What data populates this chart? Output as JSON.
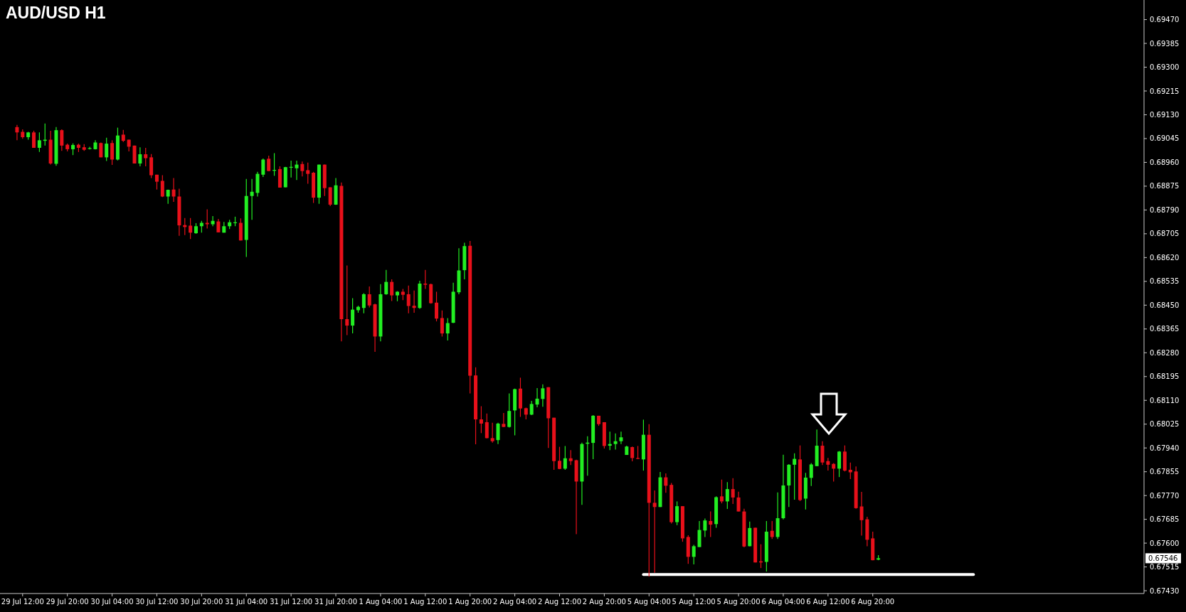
{
  "chart_data": {
    "type": "candlestick",
    "title": "AUD/USD H1",
    "categories": [
      null,
      "29 Jul 12:00",
      null,
      null,
      null,
      null,
      null,
      null,
      null,
      "29 Jul 20:00",
      null,
      null,
      null,
      null,
      null,
      null,
      null,
      "30 Jul 04:00",
      null,
      null,
      null,
      null,
      null,
      null,
      null,
      "30 Jul 12:00",
      null,
      null,
      null,
      null,
      null,
      null,
      null,
      "30 Jul 20:00",
      null,
      null,
      null,
      null,
      null,
      null,
      null,
      "31 Jul 04:00",
      null,
      null,
      null,
      null,
      null,
      null,
      null,
      "31 Jul 12:00",
      null,
      null,
      null,
      null,
      null,
      null,
      null,
      "31 Jul 20:00",
      null,
      null,
      null,
      null,
      null,
      null,
      null,
      "1 Aug 04:00",
      null,
      null,
      null,
      null,
      null,
      null,
      null,
      "1 Aug 12:00",
      null,
      null,
      null,
      null,
      null,
      null,
      null,
      "1 Aug 20:00",
      null,
      null,
      null,
      null,
      null,
      null,
      null,
      "2 Aug 04:00",
      null,
      null,
      null,
      null,
      null,
      null,
      null,
      "2 Aug 12:00",
      null,
      null,
      null,
      null,
      null,
      null,
      null,
      "2 Aug 20:00",
      null,
      null,
      null,
      null,
      null,
      null,
      null,
      "5 Aug 04:00",
      null,
      null,
      null,
      null,
      null,
      null,
      null,
      "5 Aug 12:00",
      null,
      null,
      null,
      null,
      null,
      null,
      null,
      "5 Aug 20:00",
      null,
      null,
      null,
      null,
      null,
      null,
      null,
      "6 Aug 04:00",
      null,
      null,
      null,
      null,
      null,
      null,
      null,
      "6 Aug 12:00",
      null,
      null,
      null,
      null,
      null,
      null,
      null,
      "6 Aug 20:00",
      null,
      null,
      null,
      null,
      null,
      null,
      null,
      null,
      null,
      null,
      null,
      null,
      null,
      null,
      null,
      null,
      null,
      null,
      null,
      null,
      null,
      null,
      null,
      null,
      null,
      null,
      null,
      null,
      null,
      null,
      null,
      null,
      null,
      null,
      null,
      null,
      null,
      null,
      null,
      null,
      null,
      null,
      null,
      null,
      null,
      null,
      null,
      null
    ],
    "ohlc": [
      [
        0.69086,
        0.69094,
        0.69039,
        0.69067
      ],
      [
        0.69069,
        0.69078,
        0.69044,
        0.6905
      ],
      [
        0.6905,
        0.69069,
        0.69041,
        0.69067
      ],
      [
        0.69067,
        0.69073,
        0.69012,
        0.69012
      ],
      [
        0.69012,
        0.69067,
        0.68997,
        0.69039
      ],
      [
        0.69037,
        0.69099,
        0.6902,
        0.69041
      ],
      [
        0.69041,
        0.69073,
        0.68952,
        0.68956
      ],
      [
        0.68955,
        0.69086,
        0.68948,
        0.69075
      ],
      [
        0.69075,
        0.69078,
        0.69001,
        0.6902
      ],
      [
        0.69023,
        0.69027,
        0.68999,
        0.69007
      ],
      [
        0.69007,
        0.69028,
        0.68986,
        0.69022
      ],
      [
        0.69023,
        0.69027,
        0.68997,
        0.69012
      ],
      [
        0.69014,
        0.69025,
        0.69001,
        0.69005
      ],
      [
        0.69009,
        0.69016,
        0.69006,
        0.69011
      ],
      [
        0.69007,
        0.69039,
        0.69006,
        0.69031
      ],
      [
        0.69029,
        0.69031,
        0.68978,
        0.68978
      ],
      [
        0.68978,
        0.69048,
        0.68965,
        0.69027
      ],
      [
        0.69029,
        0.69039,
        0.68951,
        0.6897
      ],
      [
        0.6897,
        0.69084,
        0.68967,
        0.69056
      ],
      [
        0.69059,
        0.69076,
        0.69033,
        0.69037
      ],
      [
        0.69041,
        0.69041,
        0.68999,
        0.69016
      ],
      [
        0.6902,
        0.6902,
        0.68956,
        0.68956
      ],
      [
        0.68956,
        0.69014,
        0.68946,
        0.68989
      ],
      [
        0.68989,
        0.69012,
        0.68946,
        0.68975
      ],
      [
        0.68978,
        0.6899,
        0.68904,
        0.68914
      ],
      [
        0.68916,
        0.68916,
        0.68863,
        0.68891
      ],
      [
        0.68894,
        0.68914,
        0.68836,
        0.68838
      ],
      [
        0.68838,
        0.68863,
        0.68812,
        0.68862
      ],
      [
        0.68863,
        0.68904,
        0.68819,
        0.68838
      ],
      [
        0.68838,
        0.68866,
        0.68698,
        0.68735
      ],
      [
        0.68736,
        0.68761,
        0.687,
        0.68729
      ],
      [
        0.68734,
        0.68761,
        0.68686,
        0.68709
      ],
      [
        0.68707,
        0.68743,
        0.68705,
        0.68732
      ],
      [
        0.68732,
        0.68751,
        0.68709,
        0.68744
      ],
      [
        0.68744,
        0.68792,
        0.68724,
        0.68739
      ],
      [
        0.68739,
        0.68768,
        0.68732,
        0.68751
      ],
      [
        0.68749,
        0.68758,
        0.6871,
        0.6871
      ],
      [
        0.68709,
        0.68747,
        0.68709,
        0.68732
      ],
      [
        0.68732,
        0.68755,
        0.68722,
        0.68746
      ],
      [
        0.68744,
        0.68766,
        0.68732,
        0.68746
      ],
      [
        0.68744,
        0.6876,
        0.68681,
        0.68681
      ],
      [
        0.68683,
        0.68901,
        0.68622,
        0.6884
      ],
      [
        0.6884,
        0.68901,
        0.68755,
        0.68855
      ],
      [
        0.68851,
        0.68926,
        0.68838,
        0.68919
      ],
      [
        0.68916,
        0.68974,
        0.68908,
        0.6897
      ],
      [
        0.68973,
        0.68984,
        0.68929,
        0.68929
      ],
      [
        0.68931,
        0.68993,
        0.68912,
        0.68933
      ],
      [
        0.68936,
        0.68946,
        0.6887,
        0.6887
      ],
      [
        0.68871,
        0.68944,
        0.68871,
        0.68943
      ],
      [
        0.68941,
        0.68966,
        0.68906,
        0.68944
      ],
      [
        0.68939,
        0.68966,
        0.68897,
        0.68952
      ],
      [
        0.68954,
        0.68963,
        0.6891,
        0.68929
      ],
      [
        0.68932,
        0.68959,
        0.68884,
        0.68919
      ],
      [
        0.68923,
        0.68926,
        0.68815,
        0.68834
      ],
      [
        0.68834,
        0.68952,
        0.68812,
        0.68952
      ],
      [
        0.68952,
        0.68952,
        0.6884,
        0.68868
      ],
      [
        0.68871,
        0.68871,
        0.68804,
        0.68809
      ],
      [
        0.68809,
        0.68904,
        0.68808,
        0.68878
      ],
      [
        0.68876,
        0.68888,
        0.68321,
        0.684
      ],
      [
        0.684,
        0.68592,
        0.68343,
        0.68377
      ],
      [
        0.68377,
        0.68475,
        0.68349,
        0.68434
      ],
      [
        0.68432,
        0.68448,
        0.68423,
        0.68444
      ],
      [
        0.6844,
        0.68493,
        0.68421,
        0.68489
      ],
      [
        0.68489,
        0.68517,
        0.68442,
        0.68449
      ],
      [
        0.68453,
        0.68455,
        0.68283,
        0.68338
      ],
      [
        0.68338,
        0.68525,
        0.68321,
        0.68489
      ],
      [
        0.68489,
        0.68576,
        0.68487,
        0.68533
      ],
      [
        0.68533,
        0.68542,
        0.68465,
        0.68485
      ],
      [
        0.68485,
        0.685,
        0.68464,
        0.68498
      ],
      [
        0.68498,
        0.68508,
        0.68468,
        0.68487
      ],
      [
        0.68489,
        0.6852,
        0.68421,
        0.68447
      ],
      [
        0.68448,
        0.68502,
        0.68423,
        0.6844
      ],
      [
        0.6844,
        0.68537,
        0.68437,
        0.68527
      ],
      [
        0.68527,
        0.68576,
        0.68508,
        0.68523
      ],
      [
        0.68525,
        0.68527,
        0.68455,
        0.68457
      ],
      [
        0.68459,
        0.68498,
        0.68392,
        0.68402
      ],
      [
        0.68404,
        0.68431,
        0.68338,
        0.68349
      ],
      [
        0.68349,
        0.68404,
        0.68324,
        0.68386
      ],
      [
        0.68387,
        0.6853,
        0.68386,
        0.68498
      ],
      [
        0.68496,
        0.68653,
        0.68489,
        0.68574
      ],
      [
        0.68575,
        0.68673,
        0.68542,
        0.68661
      ],
      [
        0.68662,
        0.68679,
        0.68135,
        0.68198
      ],
      [
        0.68199,
        0.68228,
        0.67953,
        0.68042
      ],
      [
        0.68042,
        0.68089,
        0.67993,
        0.68027
      ],
      [
        0.68032,
        0.68063,
        0.67974,
        0.67975
      ],
      [
        0.67975,
        0.6803,
        0.67959,
        0.67964
      ],
      [
        0.67968,
        0.6803,
        0.67954,
        0.68027
      ],
      [
        0.68026,
        0.68065,
        0.68015,
        0.68015
      ],
      [
        0.68015,
        0.68135,
        0.68013,
        0.68072
      ],
      [
        0.68074,
        0.68152,
        0.67985,
        0.6815
      ],
      [
        0.68152,
        0.68191,
        0.68051,
        0.68081
      ],
      [
        0.68082,
        0.68084,
        0.68042,
        0.68059
      ],
      [
        0.68059,
        0.68108,
        0.68057,
        0.68097
      ],
      [
        0.68095,
        0.68154,
        0.68085,
        0.68116
      ],
      [
        0.68115,
        0.68167,
        0.68087,
        0.68153
      ],
      [
        0.68157,
        0.68157,
        0.6794,
        0.68046
      ],
      [
        0.68048,
        0.68048,
        0.67862,
        0.67893
      ],
      [
        0.67894,
        0.67944,
        0.67864,
        0.67865
      ],
      [
        0.67866,
        0.67947,
        0.67862,
        0.67903
      ],
      [
        0.67903,
        0.67932,
        0.67879,
        0.67893
      ],
      [
        0.67896,
        0.67898,
        0.67632,
        0.6782
      ],
      [
        0.6782,
        0.67959,
        0.67737,
        0.67954
      ],
      [
        0.67955,
        0.67982,
        0.67841,
        0.67959
      ],
      [
        0.67958,
        0.68057,
        0.679,
        0.68055
      ],
      [
        0.68055,
        0.68055,
        0.68019,
        0.68025
      ],
      [
        0.68032,
        0.68032,
        0.67938,
        0.67947
      ],
      [
        0.67948,
        0.67998,
        0.67932,
        0.67954
      ],
      [
        0.67954,
        0.67992,
        0.67934,
        0.67964
      ],
      [
        0.67964,
        0.67998,
        0.67954,
        0.67978
      ],
      [
        0.67915,
        0.67948,
        0.67915,
        0.67945
      ],
      [
        0.67943,
        0.67945,
        0.67892,
        0.67904
      ],
      [
        0.67904,
        0.67947,
        0.679,
        0.67902
      ],
      [
        0.67899,
        0.68041,
        0.67859,
        0.67987
      ],
      [
        0.67987,
        0.68025,
        0.6748,
        0.67744
      ],
      [
        0.67744,
        0.67788,
        0.67494,
        0.67729
      ],
      [
        0.67729,
        0.67854,
        0.67729,
        0.67835
      ],
      [
        0.67835,
        0.67849,
        0.6778,
        0.67805
      ],
      [
        0.67808,
        0.67815,
        0.6767,
        0.67675
      ],
      [
        0.67675,
        0.67749,
        0.67664,
        0.67732
      ],
      [
        0.67732,
        0.67732,
        0.67605,
        0.67617
      ],
      [
        0.67622,
        0.67628,
        0.67526,
        0.67551
      ],
      [
        0.67551,
        0.67594,
        0.67524,
        0.67589
      ],
      [
        0.67586,
        0.67679,
        0.67586,
        0.67647
      ],
      [
        0.67645,
        0.67688,
        0.67622,
        0.67681
      ],
      [
        0.67679,
        0.67713,
        0.67622,
        0.67666
      ],
      [
        0.67668,
        0.67767,
        0.67655,
        0.67764
      ],
      [
        0.67767,
        0.67827,
        0.67742,
        0.67749
      ],
      [
        0.67749,
        0.67818,
        0.67722,
        0.67793
      ],
      [
        0.67793,
        0.67832,
        0.6774,
        0.67763
      ],
      [
        0.67763,
        0.67784,
        0.67713,
        0.67713
      ],
      [
        0.67713,
        0.67723,
        0.67585,
        0.67588
      ],
      [
        0.67589,
        0.67677,
        0.67589,
        0.67654
      ],
      [
        0.67655,
        0.67655,
        0.67531,
        0.67531
      ],
      [
        0.67535,
        0.67596,
        0.67511,
        0.67531
      ],
      [
        0.67533,
        0.67679,
        0.67499,
        0.67641
      ],
      [
        0.67644,
        0.67679,
        0.67615,
        0.67622
      ],
      [
        0.67622,
        0.67781,
        0.67615,
        0.67689
      ],
      [
        0.67689,
        0.67916,
        0.67685,
        0.67806
      ],
      [
        0.67806,
        0.67882,
        0.67729,
        0.6788
      ],
      [
        0.6788,
        0.67921,
        0.67755,
        0.67901
      ],
      [
        0.67899,
        0.67949,
        0.6775,
        0.67754
      ],
      [
        0.67759,
        0.67851,
        0.6772,
        0.67834
      ],
      [
        0.67833,
        0.67886,
        0.67804,
        0.67881
      ],
      [
        0.67875,
        0.68006,
        0.67875,
        0.67948
      ],
      [
        0.67948,
        0.67964,
        0.67879,
        0.67888
      ],
      [
        0.67893,
        0.67904,
        0.67859,
        0.6788
      ],
      [
        0.67883,
        0.67886,
        0.6782,
        0.67866
      ],
      [
        0.67866,
        0.67929,
        0.67836,
        0.67927
      ],
      [
        0.67927,
        0.67949,
        0.67856,
        0.67859
      ],
      [
        0.67862,
        0.67888,
        0.67829,
        0.67853
      ],
      [
        0.67856,
        0.67874,
        0.67723,
        0.67725
      ],
      [
        0.67731,
        0.67783,
        0.67627,
        0.67682
      ],
      [
        0.67685,
        0.67694,
        0.67589,
        0.67612
      ],
      [
        0.67617,
        0.67641,
        0.67539,
        0.67539
      ],
      [
        0.67541,
        0.67557,
        0.67539,
        0.67546
      ],
      null,
      null,
      null,
      null,
      null,
      null,
      null,
      null,
      null,
      null,
      null,
      null,
      null,
      null,
      null,
      null,
      null,
      null,
      null,
      null,
      null,
      null,
      null,
      null,
      null,
      null,
      null,
      null,
      null,
      null,
      null,
      null,
      null,
      null,
      null,
      null,
      null,
      null,
      null,
      null,
      null,
      null,
      null,
      null,
      null,
      null,
      null
    ],
    "colors": [
      "#e8101a",
      "#e8101a",
      "#22ee22",
      "#e8101a",
      "#22ee22",
      "#22ee22",
      "#e8101a",
      "#22ee22",
      "#e8101a",
      "#e8101a",
      "#22ee22",
      "#e8101a",
      "#e8101a",
      "#22ee22",
      "#22ee22",
      "#e8101a",
      "#22ee22",
      "#e8101a",
      "#22ee22",
      "#e8101a",
      "#e8101a",
      "#e8101a",
      "#22ee22",
      "#e8101a",
      "#e8101a",
      "#e8101a",
      "#e8101a",
      "#22ee22",
      "#e8101a",
      "#e8101a",
      "#e8101a",
      "#e8101a",
      "#22ee22",
      "#22ee22",
      "#e8101a",
      "#22ee22",
      "#e8101a",
      "#22ee22",
      "#22ee22",
      "#22ee22",
      "#e8101a",
      "#22ee22",
      "#22ee22",
      "#22ee22",
      "#22ee22",
      "#e8101a",
      "#22ee22",
      "#e8101a",
      "#22ee22",
      "#22ee22",
      "#22ee22",
      "#e8101a",
      "#e8101a",
      "#e8101a",
      "#22ee22",
      "#e8101a",
      "#e8101a",
      "#22ee22",
      "#e8101a",
      "#e8101a",
      "#22ee22",
      "#22ee22",
      "#22ee22",
      "#e8101a",
      "#e8101a",
      "#22ee22",
      "#22ee22",
      "#e8101a",
      "#22ee22",
      "#e8101a",
      "#e8101a",
      "#e8101a",
      "#22ee22",
      "#e8101a",
      "#e8101a",
      "#e8101a",
      "#e8101a",
      "#22ee22",
      "#22ee22",
      "#22ee22",
      "#22ee22",
      "#e8101a",
      "#e8101a",
      "#e8101a",
      "#e8101a",
      "#e8101a",
      "#22ee22",
      "#e8101a",
      "#22ee22",
      "#22ee22",
      "#e8101a",
      "#e8101a",
      "#22ee22",
      "#22ee22",
      "#22ee22",
      "#e8101a",
      "#e8101a",
      "#e8101a",
      "#22ee22",
      "#e8101a",
      "#e8101a",
      "#22ee22",
      "#22ee22",
      "#22ee22",
      "#e8101a",
      "#e8101a",
      "#22ee22",
      "#22ee22",
      "#22ee22",
      "#22ee22",
      "#e8101a",
      "#e8101a",
      "#22ee22",
      "#e8101a",
      "#e8101a",
      "#22ee22",
      "#e8101a",
      "#e8101a",
      "#22ee22",
      "#e8101a",
      "#e8101a",
      "#22ee22",
      "#22ee22",
      "#22ee22",
      "#e8101a",
      "#22ee22",
      "#e8101a",
      "#22ee22",
      "#e8101a",
      "#e8101a",
      "#e8101a",
      "#22ee22",
      "#e8101a",
      "#e8101a",
      "#22ee22",
      "#e8101a",
      "#22ee22",
      "#22ee22",
      "#22ee22",
      "#22ee22",
      "#e8101a",
      "#22ee22",
      "#22ee22",
      "#22ee22",
      "#e8101a",
      "#e8101a",
      "#e8101a",
      "#22ee22",
      "#e8101a",
      "#e8101a",
      "#e8101a",
      "#e8101a",
      "#e8101a",
      "#e8101a",
      "#22ee22",
      null,
      null,
      null,
      null,
      null,
      null,
      null,
      null,
      null,
      null,
      null,
      null,
      null,
      null,
      null,
      null,
      null,
      null,
      null,
      null,
      null,
      null,
      null,
      null,
      null,
      null,
      null,
      null,
      null,
      null,
      null,
      null,
      null,
      null,
      null,
      null,
      null,
      null,
      null,
      null,
      null,
      null,
      null,
      null,
      null,
      null,
      null
    ],
    "series": [
      {
        "type": "line",
        "color": "#ffffff",
        "values": [
          null,
          null,
          null,
          null,
          null,
          null,
          null,
          null,
          null,
          null,
          null,
          null,
          null,
          null,
          null,
          null,
          null,
          null,
          null,
          null,
          null,
          null,
          null,
          null,
          null,
          null,
          null,
          null,
          null,
          null,
          null,
          null,
          null,
          null,
          null,
          null,
          null,
          null,
          null,
          null,
          null,
          null,
          null,
          null,
          null,
          null,
          null,
          null,
          null,
          null,
          null,
          null,
          null,
          null,
          null,
          null,
          null,
          null,
          null,
          null,
          null,
          null,
          null,
          null,
          null,
          null,
          null,
          null,
          null,
          null,
          null,
          null,
          null,
          null,
          null,
          null,
          null,
          null,
          null,
          null,
          null,
          null,
          null,
          null,
          null,
          null,
          null,
          null,
          null,
          null,
          null,
          null,
          null,
          null,
          null,
          null,
          null,
          null,
          null,
          null,
          null,
          null,
          null,
          null,
          null,
          null,
          null,
          null,
          null,
          null,
          null,
          null,
          0.67488,
          0.67488,
          0.67488,
          0.67488,
          0.67488,
          0.67488,
          0.67488,
          0.67488,
          0.67488,
          0.67488,
          0.67488,
          0.67488,
          0.67488,
          0.67488,
          0.67488,
          0.67488,
          0.67488,
          0.67488,
          0.67488,
          0.67488,
          0.67488,
          0.67488,
          0.67488,
          0.67488,
          0.67488,
          0.67488,
          0.67488,
          0.67488,
          0.67488,
          0.67488,
          0.67488,
          0.67488,
          0.67488,
          0.67488,
          0.67488,
          0.67488,
          0.67488,
          0.67488,
          0.67488,
          0.67488,
          0.67488,
          0.67488,
          0.67488,
          0.67488,
          0.67488,
          0.67488,
          0.67488,
          0.67488,
          0.67488,
          0.67488,
          0.67488,
          0.67488,
          0.67488,
          0.67488,
          0.67488,
          0.67488,
          0.67488,
          0.67488,
          0.67488,
          0.67488,
          null,
          null,
          null,
          null,
          null,
          null,
          null,
          null,
          null,
          null,
          null,
          null,
          null,
          null,
          null,
          null,
          null,
          null,
          null,
          null,
          null,
          null,
          null,
          null,
          null,
          null,
          null,
          null,
          null,
          null
        ]
      }
    ],
    "ylim": [
      0.6742,
      0.6954
    ],
    "yticks": [
      {
        "value": 0.6743,
        "label": "0.67430"
      },
      0.67515,
      {
        "value": 0.676,
        "label": "0.67600"
      },
      0.67685,
      {
        "value": 0.6777,
        "label": "0.67770"
      },
      0.67855,
      {
        "value": 0.6794,
        "label": "0.67940"
      },
      0.68025,
      {
        "value": 0.6811,
        "label": "0.68110"
      },
      0.68195,
      {
        "value": 0.6828,
        "label": "0.68280"
      },
      0.68365,
      {
        "value": 0.6845,
        "label": "0.68450"
      },
      0.68535,
      {
        "value": 0.6862,
        "label": "0.68620"
      },
      0.68705,
      {
        "value": 0.6879,
        "label": "0.68790"
      },
      0.68875,
      {
        "value": 0.6896,
        "label": "0.68960"
      },
      0.69045,
      {
        "value": 0.6913,
        "label": "0.69130"
      },
      0.69215,
      {
        "value": 0.693,
        "label": "0.69300"
      },
      0.69385,
      {
        "value": 0.6947,
        "label": "0.69470"
      }
    ],
    "annotations": [
      "0.67546"
    ]
  }
}
